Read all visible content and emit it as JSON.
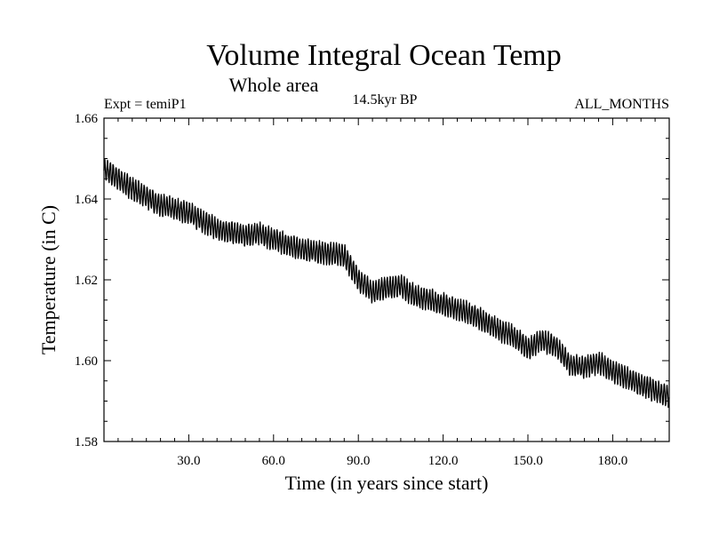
{
  "chart_data": {
    "type": "line",
    "title": "Volume Integral Ocean Temp",
    "subtitle": "Whole area",
    "header_left": "Expt = temiP1",
    "header_center": "14.5kyr BP",
    "header_right": "ALL_MONTHS",
    "xlabel": "Time (in years since start)",
    "ylabel": "Temperature (in C)",
    "xlim": [
      0,
      200
    ],
    "ylim": [
      1.58,
      1.66
    ],
    "xticks": [
      30,
      60,
      90,
      120,
      150,
      180
    ],
    "xtick_labels": [
      "30.0",
      "60.0",
      "90.0",
      "120.0",
      "150.0",
      "180.0"
    ],
    "yticks": [
      1.58,
      1.6,
      1.62,
      1.64,
      1.66
    ],
    "ytick_labels": [
      "1.58",
      "1.60",
      "1.62",
      "1.64",
      "1.66"
    ],
    "series": [
      {
        "name": "Volume integral ocean temperature",
        "seasonal_amplitude": 0.0025,
        "annual_mean": [
          [
            0,
            1.6475
          ],
          [
            10,
            1.6425
          ],
          [
            20,
            1.6385
          ],
          [
            30,
            1.6365
          ],
          [
            40,
            1.6325
          ],
          [
            50,
            1.631
          ],
          [
            55,
            1.6315
          ],
          [
            60,
            1.63
          ],
          [
            70,
            1.6275
          ],
          [
            80,
            1.6265
          ],
          [
            85,
            1.626
          ],
          [
            90,
            1.62
          ],
          [
            95,
            1.617
          ],
          [
            100,
            1.618
          ],
          [
            105,
            1.6185
          ],
          [
            110,
            1.616
          ],
          [
            120,
            1.614
          ],
          [
            130,
            1.6115
          ],
          [
            140,
            1.6075
          ],
          [
            145,
            1.606
          ],
          [
            150,
            1.603
          ],
          [
            155,
            1.605
          ],
          [
            160,
            1.6035
          ],
          [
            165,
            1.599
          ],
          [
            170,
            1.5985
          ],
          [
            175,
            1.5995
          ],
          [
            180,
            1.5975
          ],
          [
            190,
            1.594
          ],
          [
            200,
            1.591
          ]
        ]
      }
    ]
  }
}
